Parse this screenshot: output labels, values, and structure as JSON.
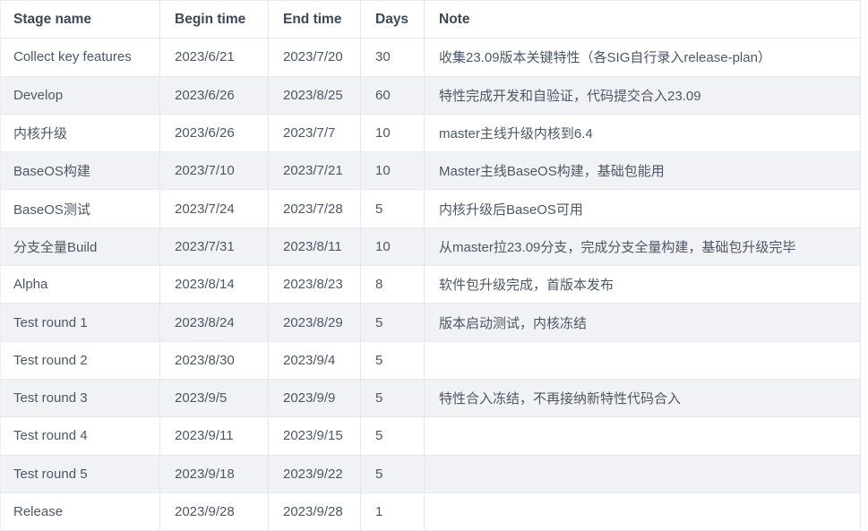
{
  "table": {
    "columns": [
      {
        "key": "stage",
        "label": "Stage name"
      },
      {
        "key": "begin",
        "label": "Begin time"
      },
      {
        "key": "end",
        "label": "End time"
      },
      {
        "key": "days",
        "label": "Days"
      },
      {
        "key": "note",
        "label": "Note"
      }
    ],
    "rows": [
      {
        "stage": "Collect key features",
        "begin": "2023/6/21",
        "end": "2023/7/20",
        "days": "30",
        "note": "收集23.09版本关键特性（各SIG自行录入release-plan）"
      },
      {
        "stage": "Develop",
        "begin": "2023/6/26",
        "end": "2023/8/25",
        "days": "60",
        "note": "特性完成开发和自验证，代码提交合入23.09"
      },
      {
        "stage": "内核升级",
        "begin": "2023/6/26",
        "end": "2023/7/7",
        "days": "10",
        "note": "master主线升级内核到6.4"
      },
      {
        "stage": "BaseOS构建",
        "begin": "2023/7/10",
        "end": "2023/7/21",
        "days": "10",
        "note": "Master主线BaseOS构建，基础包能用"
      },
      {
        "stage": "BaseOS测试",
        "begin": "2023/7/24",
        "end": "2023/7/28",
        "days": "5",
        "note": "内核升级后BaseOS可用"
      },
      {
        "stage": "分支全量Build",
        "begin": "2023/7/31",
        "end": "2023/8/11",
        "days": "10",
        "note": "从master拉23.09分支，完成分支全量构建，基础包升级完毕"
      },
      {
        "stage": "Alpha",
        "begin": "2023/8/14",
        "end": "2023/8/23",
        "days": "8",
        "note": "软件包升级完成，首版本发布"
      },
      {
        "stage": "Test round 1",
        "begin": "2023/8/24",
        "end": "2023/8/29",
        "days": "5",
        "note": "版本启动测试，内核冻结"
      },
      {
        "stage": "Test round 2",
        "begin": "2023/8/30",
        "end": "2023/9/4",
        "days": "5",
        "note": ""
      },
      {
        "stage": "Test round 3",
        "begin": "2023/9/5",
        "end": "2023/9/9",
        "days": "5",
        "note": "特性合入冻结，不再接纳新特性代码合入"
      },
      {
        "stage": "Test round 4",
        "begin": "2023/9/11",
        "end": "2023/9/15",
        "days": "5",
        "note": ""
      },
      {
        "stage": "Test round 5",
        "begin": "2023/9/18",
        "end": "2023/9/22",
        "days": "5",
        "note": ""
      },
      {
        "stage": "Release",
        "begin": "2023/9/28",
        "end": "2023/9/28",
        "days": "1",
        "note": ""
      }
    ]
  },
  "colors": {
    "header_text": "#3b4857",
    "body_text": "#4e5765",
    "alt_row_bg": "#f0f2f5",
    "border": "#e4e7eb",
    "background": "#ffffff"
  }
}
